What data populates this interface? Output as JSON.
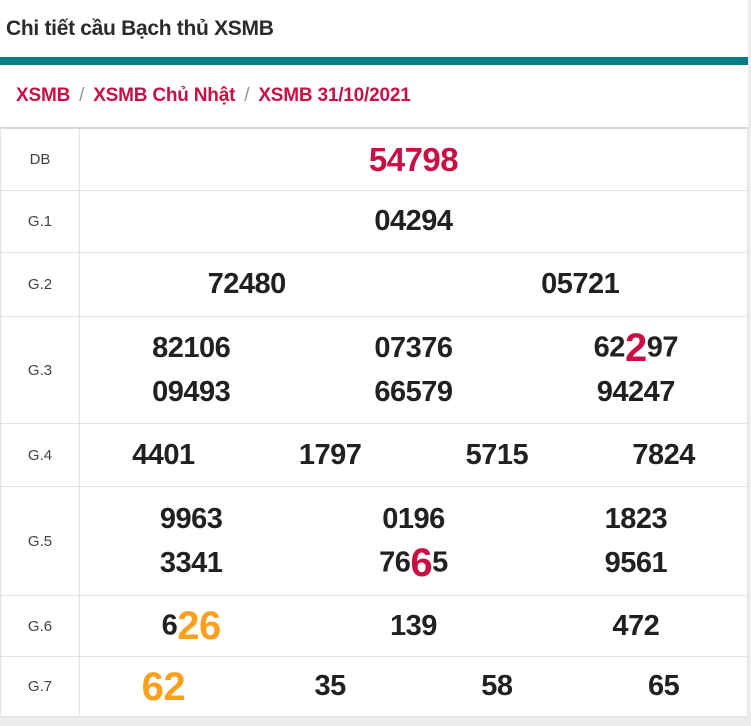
{
  "colors": {
    "teal_accent": "#077b82",
    "crimson": "#c81046",
    "orange": "#f9a11d",
    "number_black": "#212121"
  },
  "header": {
    "title": "Chi tiết cầu Bạch thủ XSMB"
  },
  "breadcrumb": {
    "separator": "/",
    "items": [
      "XSMB",
      "XSMB Chủ Nhật",
      "XSMB 31/10/2021"
    ]
  },
  "results": {
    "rows": [
      {
        "label": "DB",
        "lines": [
          [
            [
              {
                "text": "54798",
                "color": "red"
              }
            ]
          ]
        ]
      },
      {
        "label": "G.1",
        "lines": [
          [
            [
              {
                "text": "04294"
              }
            ]
          ]
        ]
      },
      {
        "label": "G.2",
        "lines": [
          [
            [
              {
                "text": "72480"
              }
            ],
            [
              {
                "text": "05721"
              }
            ]
          ]
        ]
      },
      {
        "label": "G.3",
        "lines": [
          [
            [
              {
                "text": "82106"
              }
            ],
            [
              {
                "text": "07376"
              }
            ],
            [
              {
                "text": "62"
              },
              {
                "text": "2",
                "color": "red",
                "big": true
              },
              {
                "text": "97"
              }
            ]
          ],
          [
            [
              {
                "text": "09493"
              }
            ],
            [
              {
                "text": "66579"
              }
            ],
            [
              {
                "text": "94247"
              }
            ]
          ]
        ]
      },
      {
        "label": "G.4",
        "lines": [
          [
            [
              {
                "text": "4401"
              }
            ],
            [
              {
                "text": "1797"
              }
            ],
            [
              {
                "text": "5715"
              }
            ],
            [
              {
                "text": "7824"
              }
            ]
          ]
        ]
      },
      {
        "label": "G.5",
        "lines": [
          [
            [
              {
                "text": "9963"
              }
            ],
            [
              {
                "text": "0196"
              }
            ],
            [
              {
                "text": "1823"
              }
            ]
          ],
          [
            [
              {
                "text": "3341"
              }
            ],
            [
              {
                "text": "76"
              },
              {
                "text": "6",
                "color": "red",
                "big": true
              },
              {
                "text": "5"
              }
            ],
            [
              {
                "text": "9561"
              }
            ]
          ]
        ]
      },
      {
        "label": "G.6",
        "lines": [
          [
            [
              {
                "text": "6"
              },
              {
                "text": "26",
                "color": "orange",
                "big": true
              }
            ],
            [
              {
                "text": "139"
              }
            ],
            [
              {
                "text": "472"
              }
            ]
          ]
        ]
      },
      {
        "label": "G.7",
        "lines": [
          [
            [
              {
                "text": "62",
                "color": "orange",
                "big": true
              }
            ],
            [
              {
                "text": "35"
              }
            ],
            [
              {
                "text": "58"
              }
            ],
            [
              {
                "text": "65"
              }
            ]
          ]
        ]
      }
    ]
  }
}
